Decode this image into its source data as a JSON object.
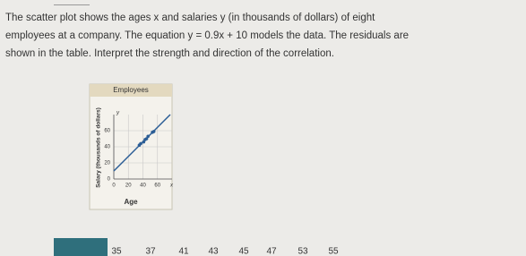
{
  "problem": {
    "lines": [
      "The scatter plot shows the ages x and salaries y (in thousands of dollars) of eight",
      "employees at a company. The equation y = 0.9x + 10 models the data. The residuals are",
      "shown in the table. Interpret the strength and direction of the correlation."
    ]
  },
  "chart_data": {
    "type": "scatter",
    "title": "Employees",
    "x_label": "Age",
    "y_label": "Salary (thousands of dollars)",
    "x_letter": "x",
    "y_letter": "y",
    "x": [
      35,
      37,
      41,
      43,
      45,
      47,
      53,
      55
    ],
    "series": [
      {
        "color": "#2b5d95",
        "values": [
          42,
          44,
          46,
          49,
          50,
          53,
          58,
          59
        ]
      }
    ],
    "xlim": [
      0,
      80
    ],
    "ylim": [
      0,
      80
    ],
    "xticks": [
      0,
      20,
      40,
      60
    ],
    "yticks": [
      0,
      20,
      40,
      60
    ],
    "grid": true
  },
  "table": {
    "row": [
      35,
      37,
      41,
      43,
      45,
      47,
      53,
      55
    ]
  }
}
